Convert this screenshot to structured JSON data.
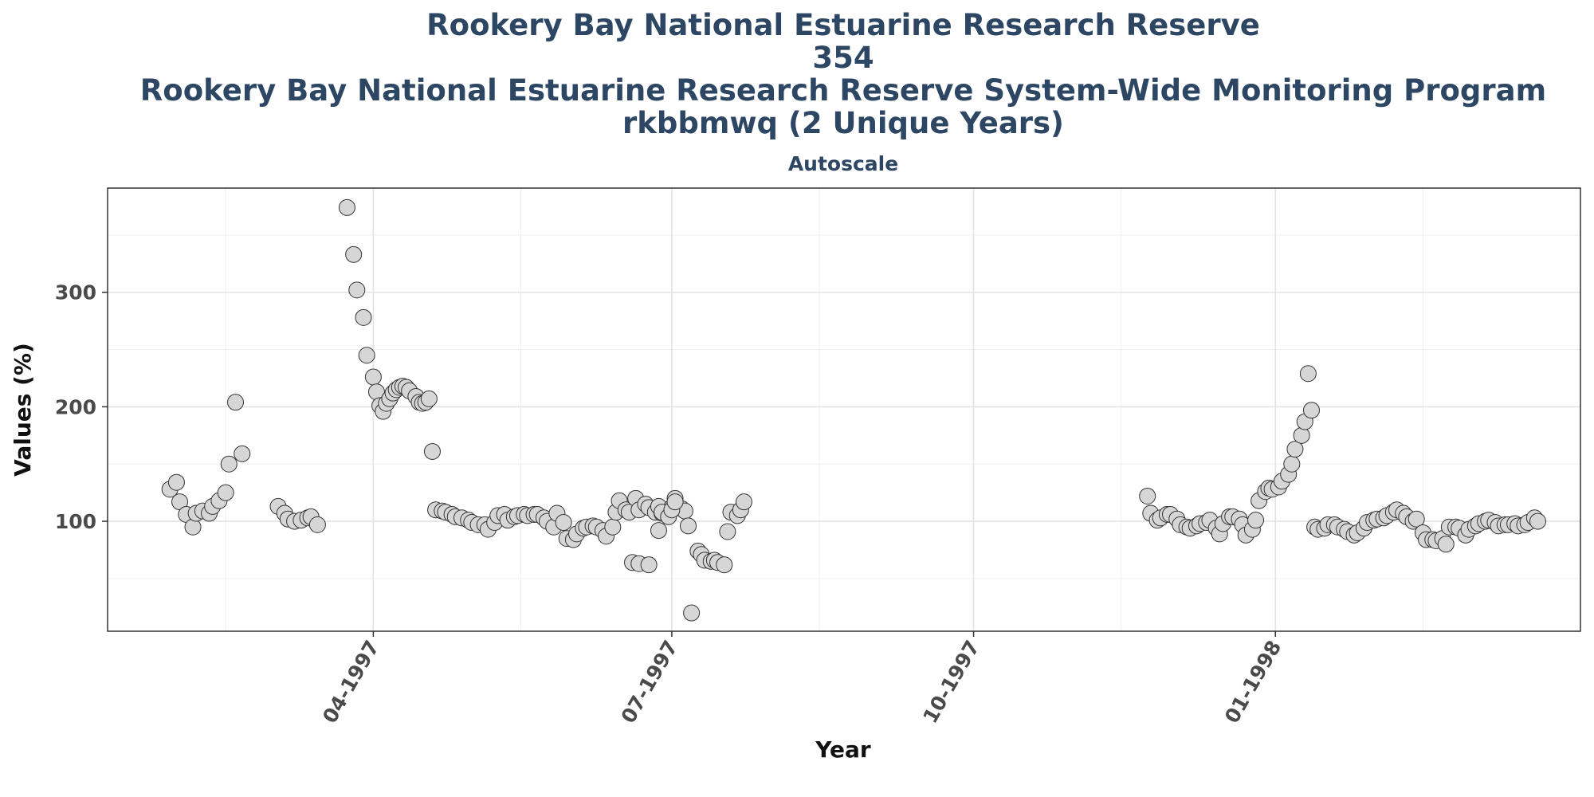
{
  "chart_data": {
    "type": "scatter",
    "title_lines": [
      "Rookery Bay National Estuarine Research Reserve",
      "354",
      "Rookery Bay National Estuarine Research Reserve System-Wide Monitoring Program",
      "rkbbmwq (2 Unique Years)"
    ],
    "subtitle": "Autoscale",
    "xlabel": "Year",
    "ylabel": "Values (%)",
    "x_type": "date",
    "xlim": [
      "1997-01-10",
      "1998-04-04"
    ],
    "ylim": [
      4,
      391
    ],
    "x_ticks": [
      {
        "date": "1997-04-01",
        "label": "04-1997"
      },
      {
        "date": "1997-07-01",
        "label": "07-1997"
      },
      {
        "date": "1997-10-01",
        "label": "10-1997"
      },
      {
        "date": "1998-01-01",
        "label": "01-1998"
      }
    ],
    "x_minor_ticks": [
      "1997-02-15",
      "1997-05-16",
      "1997-08-15",
      "1997-11-15",
      "1998-02-15"
    ],
    "y_ticks": [
      100,
      200,
      300
    ],
    "y_minor_ticks": [
      50,
      150,
      250,
      350
    ],
    "grid": true,
    "point_color": "#d6d6d6",
    "point_edge_color": "#333333",
    "title_color": "#2c4663",
    "points": [
      [
        "1997-01-29",
        128
      ],
      [
        "1997-01-31",
        134
      ],
      [
        "1997-02-01",
        117
      ],
      [
        "1997-02-03",
        106
      ],
      [
        "1997-02-05",
        95
      ],
      [
        "1997-02-06",
        107
      ],
      [
        "1997-02-08",
        109
      ],
      [
        "1997-02-10",
        107
      ],
      [
        "1997-02-11",
        113
      ],
      [
        "1997-02-13",
        118
      ],
      [
        "1997-02-15",
        125
      ],
      [
        "1997-02-16",
        150
      ],
      [
        "1997-02-18",
        204
      ],
      [
        "1997-02-20",
        159
      ],
      [
        "1997-03-03",
        113
      ],
      [
        "1997-03-05",
        107
      ],
      [
        "1997-03-06",
        102
      ],
      [
        "1997-03-08",
        100
      ],
      [
        "1997-03-10",
        101
      ],
      [
        "1997-03-12",
        103
      ],
      [
        "1997-03-13",
        104
      ],
      [
        "1997-03-15",
        97
      ],
      [
        "1997-03-24",
        374
      ],
      [
        "1997-03-26",
        333
      ],
      [
        "1997-03-27",
        302
      ],
      [
        "1997-03-29",
        278
      ],
      [
        "1997-03-30",
        245
      ],
      [
        "1997-04-01",
        226
      ],
      [
        "1997-04-02",
        213
      ],
      [
        "1997-04-03",
        201
      ],
      [
        "1997-04-04",
        196
      ],
      [
        "1997-04-05",
        203
      ],
      [
        "1997-04-06",
        207
      ],
      [
        "1997-04-07",
        212
      ],
      [
        "1997-04-08",
        215
      ],
      [
        "1997-04-09",
        217
      ],
      [
        "1997-04-10",
        218
      ],
      [
        "1997-04-11",
        217
      ],
      [
        "1997-04-12",
        214
      ],
      [
        "1997-04-14",
        209
      ],
      [
        "1997-04-15",
        204
      ],
      [
        "1997-04-16",
        203
      ],
      [
        "1997-04-17",
        204
      ],
      [
        "1997-04-18",
        207
      ],
      [
        "1997-04-19",
        161
      ],
      [
        "1997-04-20",
        110
      ],
      [
        "1997-04-22",
        109
      ],
      [
        "1997-04-23",
        108
      ],
      [
        "1997-04-25",
        106
      ],
      [
        "1997-04-26",
        104
      ],
      [
        "1997-04-28",
        103
      ],
      [
        "1997-04-30",
        101
      ],
      [
        "1997-05-01",
        99
      ],
      [
        "1997-05-03",
        97
      ],
      [
        "1997-05-05",
        97
      ],
      [
        "1997-05-06",
        93
      ],
      [
        "1997-05-08",
        99
      ],
      [
        "1997-05-09",
        105
      ],
      [
        "1997-05-11",
        106
      ],
      [
        "1997-05-12",
        101
      ],
      [
        "1997-05-14",
        104
      ],
      [
        "1997-05-15",
        105
      ],
      [
        "1997-05-17",
        106
      ],
      [
        "1997-05-18",
        105
      ],
      [
        "1997-05-20",
        106
      ],
      [
        "1997-05-21",
        106
      ],
      [
        "1997-05-23",
        103
      ],
      [
        "1997-05-24",
        100
      ],
      [
        "1997-05-26",
        95
      ],
      [
        "1997-05-27",
        107
      ],
      [
        "1997-05-29",
        99
      ],
      [
        "1997-05-30",
        85
      ],
      [
        "1997-06-01",
        84
      ],
      [
        "1997-06-02",
        89
      ],
      [
        "1997-06-04",
        94
      ],
      [
        "1997-06-05",
        95
      ],
      [
        "1997-06-07",
        96
      ],
      [
        "1997-06-08",
        95
      ],
      [
        "1997-06-10",
        92
      ],
      [
        "1997-06-11",
        87
      ],
      [
        "1997-06-13",
        95
      ],
      [
        "1997-06-14",
        108
      ],
      [
        "1997-06-15",
        118
      ],
      [
        "1997-06-17",
        110
      ],
      [
        "1997-06-18",
        108
      ],
      [
        "1997-06-20",
        120
      ],
      [
        "1997-06-21",
        110
      ],
      [
        "1997-06-23",
        115
      ],
      [
        "1997-06-24",
        112
      ],
      [
        "1997-06-26",
        108
      ],
      [
        "1997-06-27",
        113
      ],
      [
        "1997-06-28",
        107
      ],
      [
        "1997-06-30",
        106
      ],
      [
        "1997-07-01",
        112
      ],
      [
        "1997-07-02",
        120
      ],
      [
        "1997-07-04",
        111
      ],
      [
        "1997-07-05",
        109
      ],
      [
        "1997-07-06",
        96
      ],
      [
        "1997-07-07",
        20
      ],
      [
        "1997-07-09",
        74
      ],
      [
        "1997-07-10",
        71
      ],
      [
        "1997-07-11",
        66
      ],
      [
        "1997-07-13",
        65
      ],
      [
        "1997-07-14",
        66
      ],
      [
        "1997-07-15",
        64
      ],
      [
        "1997-07-17",
        62
      ],
      [
        "1997-07-18",
        91
      ],
      [
        "1997-07-19",
        108
      ],
      [
        "1997-07-21",
        105
      ],
      [
        "1997-07-22",
        110
      ],
      [
        "1997-07-23",
        117
      ],
      [
        "1997-06-19",
        64
      ],
      [
        "1997-06-21",
        63
      ],
      [
        "1997-06-24",
        62
      ],
      [
        "1997-06-27",
        92
      ],
      [
        "1997-06-28",
        108
      ],
      [
        "1997-06-30",
        104
      ],
      [
        "1997-07-01",
        110
      ],
      [
        "1997-07-02",
        117
      ],
      [
        "1997-11-23",
        122
      ],
      [
        "1997-11-24",
        107
      ],
      [
        "1997-11-26",
        101
      ],
      [
        "1997-11-27",
        103
      ],
      [
        "1997-11-29",
        106
      ],
      [
        "1997-11-30",
        106
      ],
      [
        "1997-12-02",
        102
      ],
      [
        "1997-12-03",
        97
      ],
      [
        "1997-12-05",
        95
      ],
      [
        "1997-12-06",
        94
      ],
      [
        "1997-12-08",
        96
      ],
      [
        "1997-12-09",
        98
      ],
      [
        "1997-12-11",
        99
      ],
      [
        "1997-12-12",
        101
      ],
      [
        "1997-12-14",
        94
      ],
      [
        "1997-12-15",
        89
      ],
      [
        "1997-12-16",
        98
      ],
      [
        "1997-12-18",
        104
      ],
      [
        "1997-12-19",
        104
      ],
      [
        "1997-12-21",
        102
      ],
      [
        "1997-12-22",
        97
      ],
      [
        "1997-12-23",
        88
      ],
      [
        "1997-12-25",
        93
      ],
      [
        "1997-12-26",
        101
      ],
      [
        "1997-12-27",
        118
      ],
      [
        "1997-12-29",
        126
      ],
      [
        "1997-12-30",
        129
      ],
      [
        "1997-12-31",
        128
      ],
      [
        "1998-01-02",
        130
      ],
      [
        "1998-01-03",
        135
      ],
      [
        "1998-01-05",
        141
      ],
      [
        "1998-01-06",
        150
      ],
      [
        "1998-01-07",
        163
      ],
      [
        "1998-01-09",
        175
      ],
      [
        "1998-01-10",
        187
      ],
      [
        "1998-01-11",
        229
      ],
      [
        "1998-01-12",
        197
      ],
      [
        "1998-01-13",
        95
      ],
      [
        "1998-01-14",
        93
      ],
      [
        "1998-01-16",
        94
      ],
      [
        "1998-01-17",
        97
      ],
      [
        "1998-01-19",
        97
      ],
      [
        "1998-01-20",
        95
      ],
      [
        "1998-01-22",
        93
      ],
      [
        "1998-01-23",
        91
      ],
      [
        "1998-01-25",
        88
      ],
      [
        "1998-01-26",
        90
      ],
      [
        "1998-01-28",
        94
      ],
      [
        "1998-01-29",
        99
      ],
      [
        "1998-01-31",
        101
      ],
      [
        "1998-02-01",
        102
      ],
      [
        "1998-02-03",
        103
      ],
      [
        "1998-02-04",
        105
      ],
      [
        "1998-02-06",
        108
      ],
      [
        "1998-02-07",
        110
      ],
      [
        "1998-02-09",
        107
      ],
      [
        "1998-02-10",
        104
      ],
      [
        "1998-02-12",
        100
      ],
      [
        "1998-02-13",
        102
      ],
      [
        "1998-02-15",
        90
      ],
      [
        "1998-02-16",
        84
      ],
      [
        "1998-02-18",
        84
      ],
      [
        "1998-02-19",
        83
      ],
      [
        "1998-02-21",
        85
      ],
      [
        "1998-02-22",
        80
      ],
      [
        "1998-02-23",
        95
      ],
      [
        "1998-02-25",
        95
      ],
      [
        "1998-02-26",
        94
      ],
      [
        "1998-02-28",
        88
      ],
      [
        "1998-03-01",
        93
      ],
      [
        "1998-03-03",
        96
      ],
      [
        "1998-03-04",
        98
      ],
      [
        "1998-03-06",
        100
      ],
      [
        "1998-03-07",
        101
      ],
      [
        "1998-03-09",
        99
      ],
      [
        "1998-03-10",
        96
      ],
      [
        "1998-03-12",
        97
      ],
      [
        "1998-03-13",
        97
      ],
      [
        "1998-03-15",
        98
      ],
      [
        "1998-03-16",
        96
      ],
      [
        "1998-03-18",
        97
      ],
      [
        "1998-03-19",
        99
      ],
      [
        "1998-03-21",
        103
      ],
      [
        "1998-03-22",
        100
      ]
    ]
  }
}
